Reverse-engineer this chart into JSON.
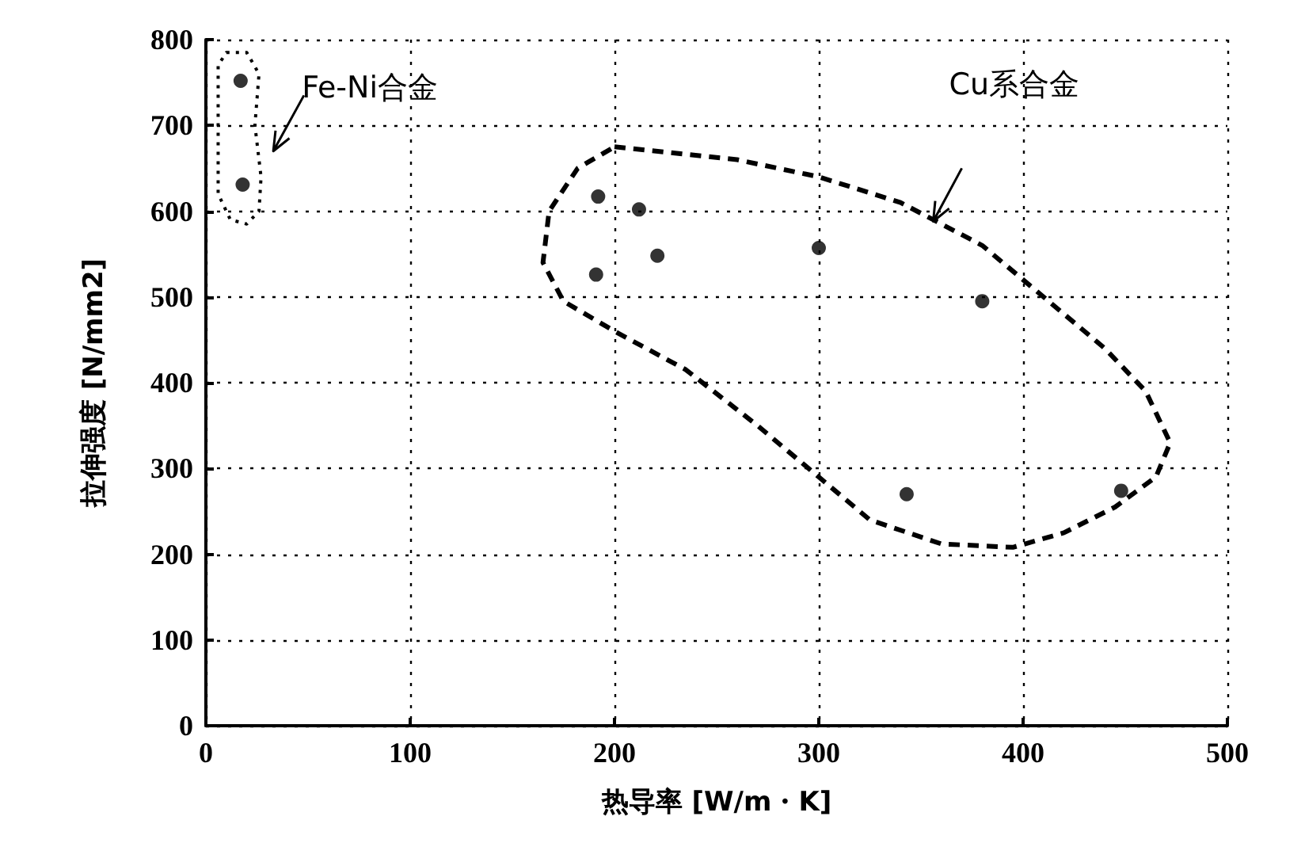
{
  "chart_data": {
    "type": "scatter",
    "xlabel": "热导率 [W/m・K]",
    "ylabel": "拉伸强度 [N/mm2]",
    "xlim": [
      0,
      500
    ],
    "xticks": [
      0,
      100,
      200,
      300,
      400,
      500
    ],
    "ylim": [
      0,
      800
    ],
    "yticks": [
      0,
      100,
      200,
      300,
      400,
      500,
      600,
      700,
      800
    ],
    "grid": true,
    "marker": "circle",
    "series": [
      {
        "color": "#000000",
        "x": [
          17,
          18,
          192,
          212,
          221,
          191,
          300,
          380,
          343,
          448
        ],
        "values": [
          752,
          631,
          617,
          602,
          548,
          526,
          557,
          495,
          270,
          274
        ]
      }
    ],
    "annotations": [
      "Fe-Ni合金",
      "Cu系合金"
    ]
  }
}
